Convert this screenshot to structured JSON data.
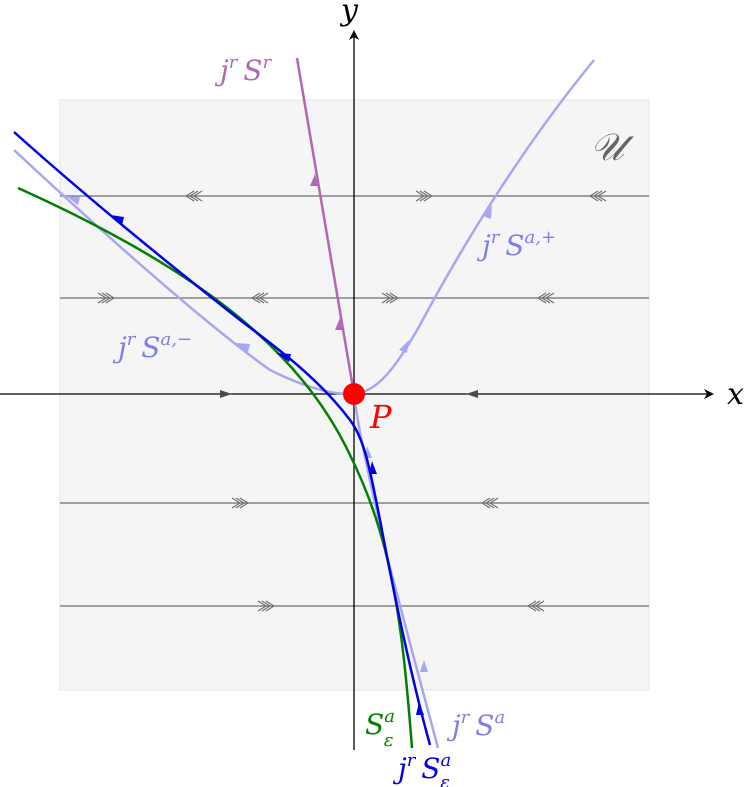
{
  "axes": {
    "x_label": "x",
    "y_label": "y"
  },
  "region_label": "𝒰",
  "point_label": "P",
  "labels": {
    "jr_Sr": {
      "base": "j",
      "sup1": "r",
      "main": "S",
      "sup2": "r"
    },
    "jr_Sa_plus": {
      "base": "j",
      "sup1": "r",
      "main": "S",
      "sup2": "a,+"
    },
    "jr_Sa_minus": {
      "base": "j",
      "sup1": "r",
      "main": "S",
      "sup2": "a,−"
    },
    "S_eps_a": {
      "main": "S",
      "sup": "a",
      "sub": "ε"
    },
    "jr_Sa": {
      "base": "j",
      "sup1": "r",
      "main": "S",
      "sup2": "a"
    },
    "jr_S_eps_a": {
      "base": "j",
      "sup1": "r",
      "main": "S",
      "sup": "a",
      "sub": "ε"
    }
  },
  "colors": {
    "region_fill": "#f5f5f5",
    "region_stroke": "#e6e6e6",
    "axis": "#000000",
    "flow_line": "#6e6e6e",
    "blue": "#0000e6",
    "light_blue": "#a6a6f2",
    "light_blue_text": "#7f7fe8",
    "green": "#008000",
    "purple": "#b366b3",
    "point": "#ff0000",
    "region_text": "#666666"
  }
}
